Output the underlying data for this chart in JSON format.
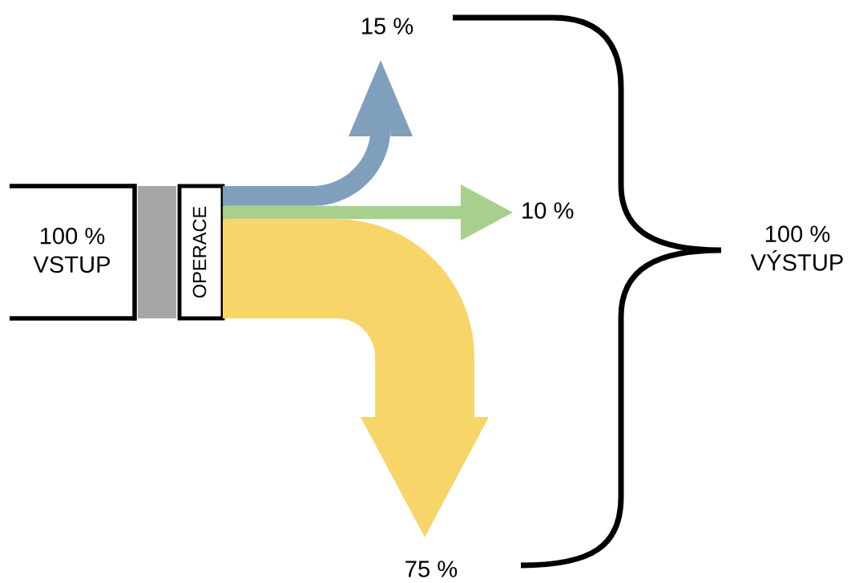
{
  "chart_data": {
    "type": "other",
    "values": [
      15,
      10,
      75
    ],
    "value_labels": [
      "15 %",
      "10 %",
      "75 %"
    ],
    "colors": [
      "#7f9fbd",
      "#a8d08d",
      "#f8d568"
    ],
    "annotations": [
      "100 %\nVSTUP",
      "OPERACE",
      "100 %\nVÝSTUP"
    ]
  }
}
